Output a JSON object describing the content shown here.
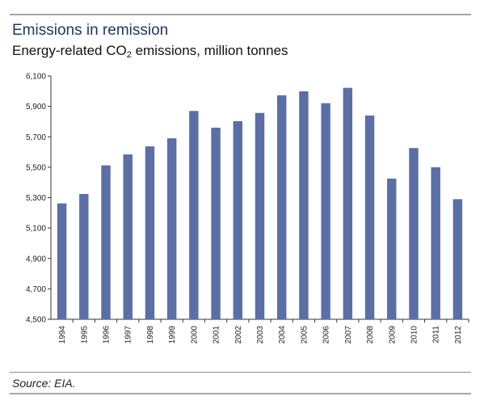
{
  "header": {
    "title": "Emissions in remission",
    "subtitle_prefix": "Energy-related CO",
    "subtitle_sub": "2",
    "subtitle_suffix": " emissions, million tonnes"
  },
  "footer": {
    "source": "Source: EIA."
  },
  "colors": {
    "bar": "#5b6ea6",
    "title": "#1f3864",
    "axis": "#333333"
  },
  "chart_data": {
    "type": "bar",
    "title": "Emissions in remission",
    "subtitle": "Energy-related CO2 emissions, million tonnes",
    "xlabel": "",
    "ylabel": "",
    "categories": [
      "1994",
      "1995",
      "1996",
      "1997",
      "1998",
      "1999",
      "2000",
      "2001",
      "2002",
      "2003",
      "2004",
      "2005",
      "2006",
      "2007",
      "2008",
      "2009",
      "2010",
      "2011",
      "2012"
    ],
    "values": [
      5262,
      5324,
      5512,
      5584,
      5637,
      5690,
      5870,
      5760,
      5803,
      5857,
      5973,
      5999,
      5921,
      6022,
      5840,
      5425,
      5626,
      5500,
      5290
    ],
    "ylim": [
      4500,
      6100
    ],
    "yticks": [
      4500,
      4700,
      4900,
      5100,
      5300,
      5500,
      5700,
      5900,
      6100
    ],
    "ytick_labels": [
      "4,500",
      "4,700",
      "4,900",
      "5,100",
      "5,300",
      "5,500",
      "5,700",
      "5,900",
      "6,100"
    ],
    "grid": false,
    "legend": "none"
  }
}
